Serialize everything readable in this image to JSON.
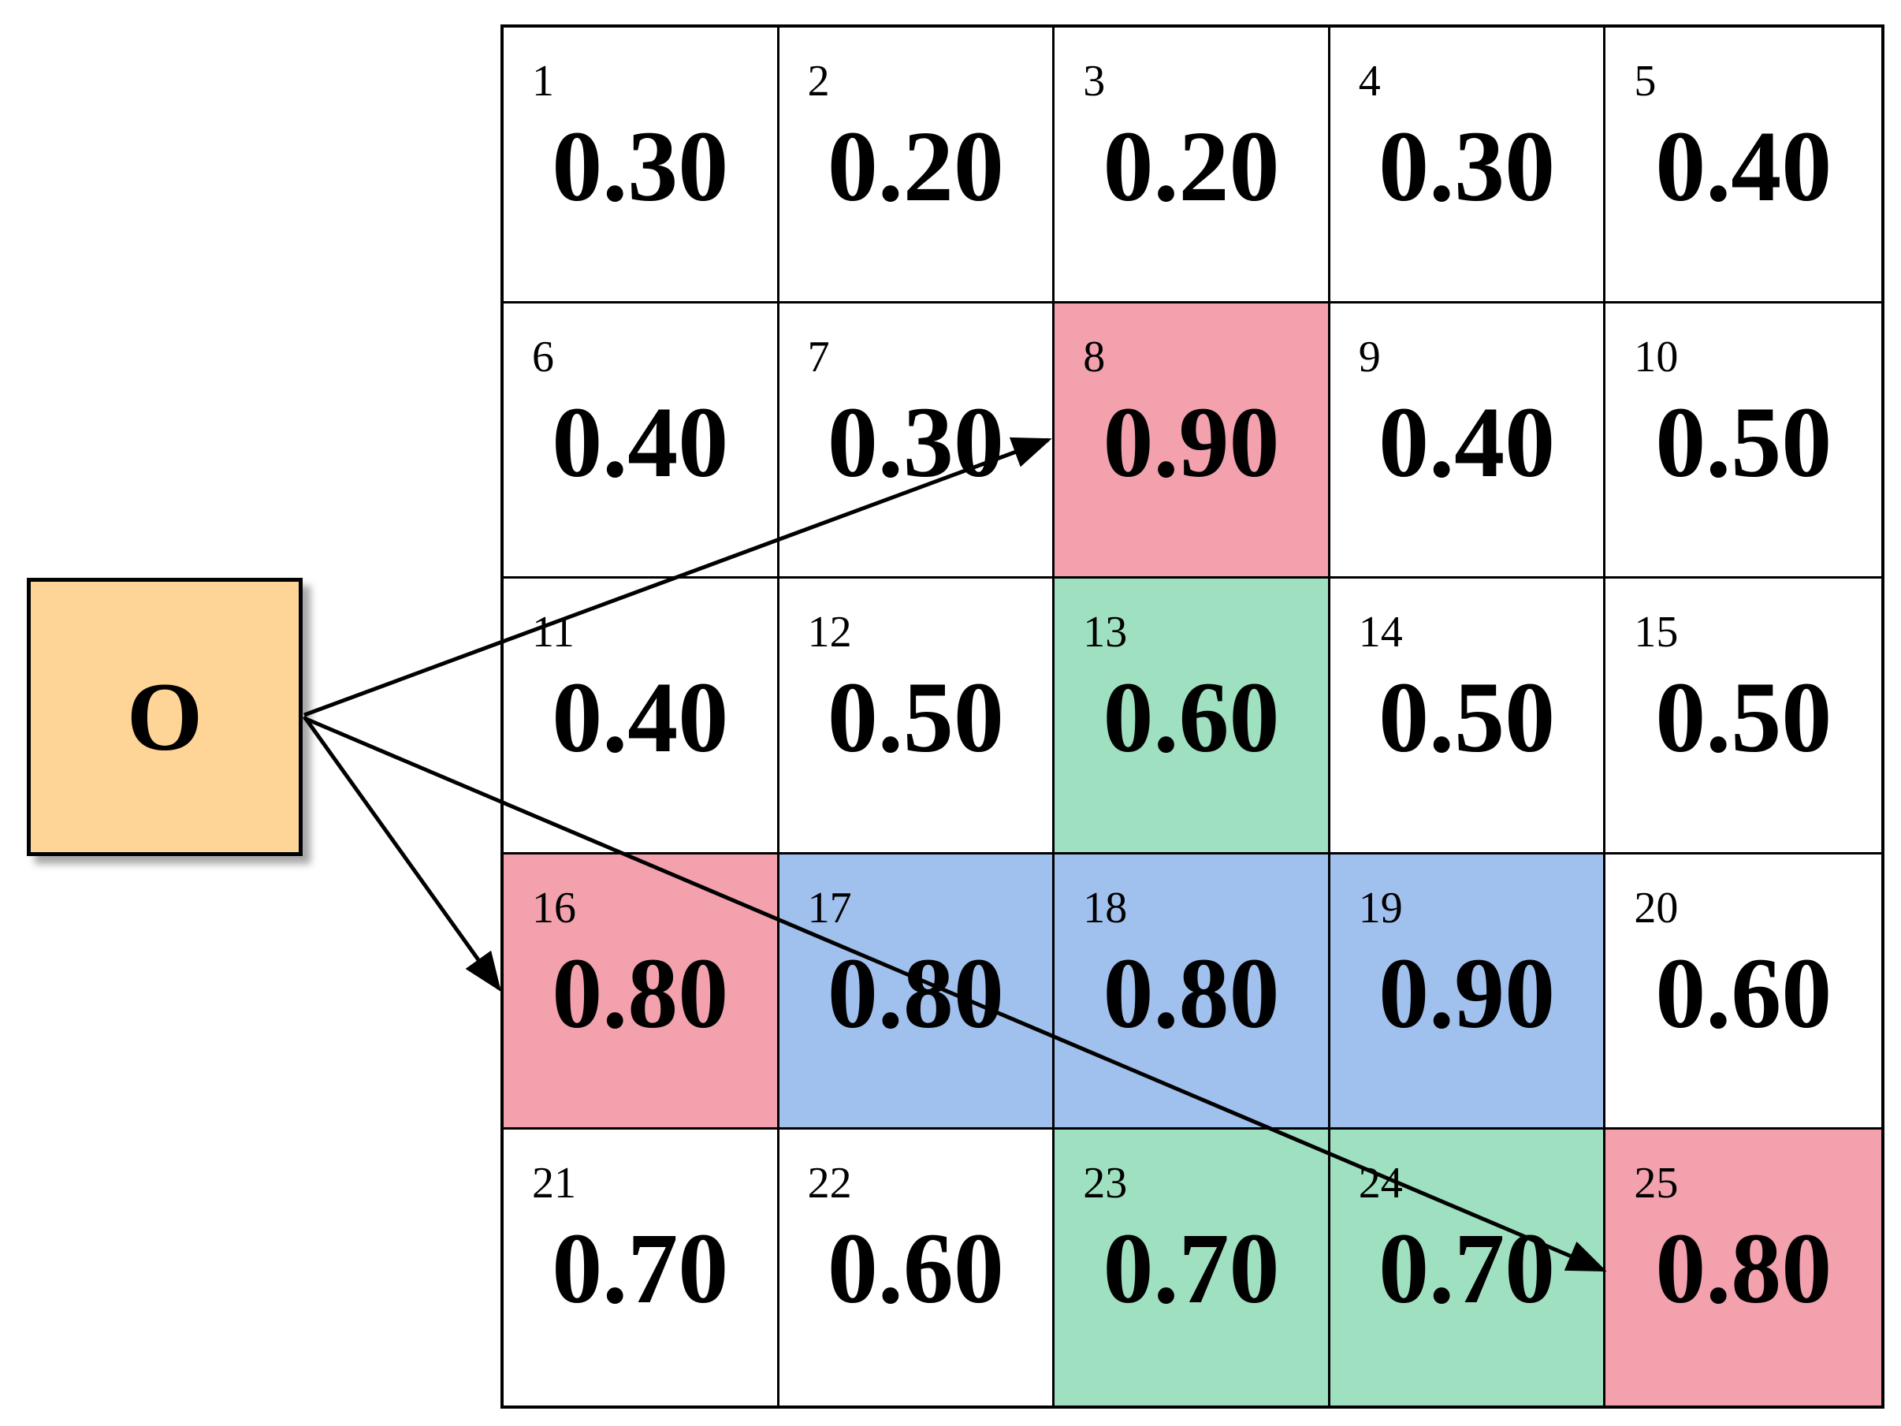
{
  "origin": {
    "label": "O"
  },
  "grid": {
    "cells": [
      {
        "index": "1",
        "value": "0.30",
        "fill": "none"
      },
      {
        "index": "2",
        "value": "0.20",
        "fill": "none"
      },
      {
        "index": "3",
        "value": "0.20",
        "fill": "none"
      },
      {
        "index": "4",
        "value": "0.30",
        "fill": "none"
      },
      {
        "index": "5",
        "value": "0.40",
        "fill": "none"
      },
      {
        "index": "6",
        "value": "0.40",
        "fill": "none"
      },
      {
        "index": "7",
        "value": "0.30",
        "fill": "none"
      },
      {
        "index": "8",
        "value": "0.90",
        "fill": "pink"
      },
      {
        "index": "9",
        "value": "0.40",
        "fill": "none"
      },
      {
        "index": "10",
        "value": "0.50",
        "fill": "none"
      },
      {
        "index": "11",
        "value": "0.40",
        "fill": "none"
      },
      {
        "index": "12",
        "value": "0.50",
        "fill": "none"
      },
      {
        "index": "13",
        "value": "0.60",
        "fill": "green"
      },
      {
        "index": "14",
        "value": "0.50",
        "fill": "none"
      },
      {
        "index": "15",
        "value": "0.50",
        "fill": "none"
      },
      {
        "index": "16",
        "value": "0.80",
        "fill": "pink"
      },
      {
        "index": "17",
        "value": "0.80",
        "fill": "blue"
      },
      {
        "index": "18",
        "value": "0.80",
        "fill": "blue"
      },
      {
        "index": "19",
        "value": "0.90",
        "fill": "blue"
      },
      {
        "index": "20",
        "value": "0.60",
        "fill": "none"
      },
      {
        "index": "21",
        "value": "0.70",
        "fill": "none"
      },
      {
        "index": "22",
        "value": "0.60",
        "fill": "none"
      },
      {
        "index": "23",
        "value": "0.70",
        "fill": "green"
      },
      {
        "index": "24",
        "value": "0.70",
        "fill": "green"
      },
      {
        "index": "25",
        "value": "0.80",
        "fill": "pink"
      }
    ]
  },
  "arrows": [
    {
      "from": "O",
      "to": "8"
    },
    {
      "from": "O",
      "to": "16"
    },
    {
      "from": "O",
      "to": "25"
    }
  ],
  "colors": {
    "origin_fill": "#ffd597",
    "pink": "#f2a1ad",
    "green": "#9ee0c0",
    "blue": "#a0c0ee"
  }
}
